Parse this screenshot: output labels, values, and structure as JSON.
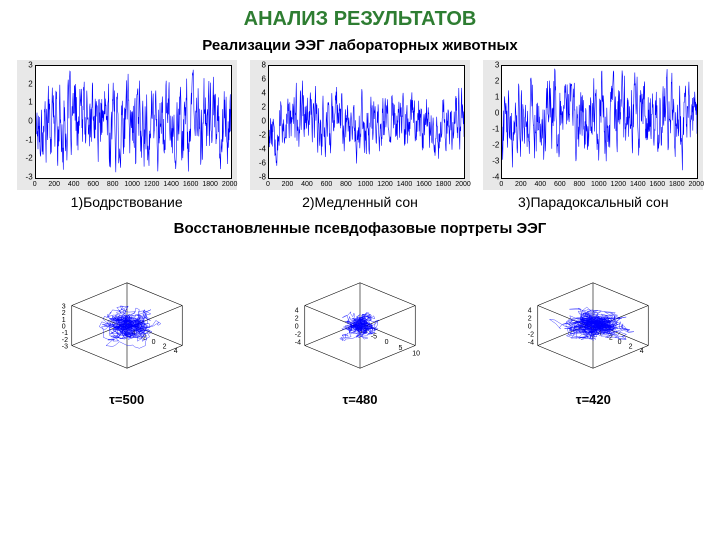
{
  "title": "АНАЛИЗ РЕЗУЛЬТАТОВ",
  "subtitle1": "Реализации ЭЭГ  лабораторных животных",
  "subtitle2": "Восстановленные псевдофазовые портреты ЭЭГ",
  "title_color": "#2e7d32",
  "plot_bg": "#e8e8e8",
  "axes_bg": "#ffffff",
  "line_color": "#0000ff",
  "ts": [
    {
      "caption": "1)Бодрствование",
      "ylim": [
        -3,
        3
      ],
      "yticks": [
        -3,
        -2,
        -1,
        0,
        1,
        2,
        3
      ],
      "xlim": [
        0,
        2000
      ],
      "xticks": [
        0,
        200,
        400,
        600,
        800,
        1000,
        1200,
        1400,
        1600,
        1800,
        2000
      ],
      "amp": 1.6,
      "noise": 0.6,
      "seed": 17
    },
    {
      "caption": "2)Медленный сон",
      "ylim": [
        -8,
        8
      ],
      "yticks": [
        -8,
        -6,
        -4,
        -2,
        0,
        2,
        4,
        6,
        8
      ],
      "xlim": [
        0,
        2000
      ],
      "xticks": [
        0,
        200,
        400,
        600,
        800,
        1000,
        1200,
        1400,
        1600,
        1800,
        2000
      ],
      "amp": 3.2,
      "noise": 1.2,
      "seed": 53
    },
    {
      "caption": "3)Парадоксальный сон",
      "ylim": [
        -4,
        3
      ],
      "yticks": [
        -4,
        -3,
        -2,
        -1,
        0,
        1,
        2,
        3
      ],
      "xlim": [
        0,
        2000
      ],
      "xticks": [
        0,
        200,
        400,
        600,
        800,
        1000,
        1200,
        1400,
        1600,
        1800,
        2000
      ],
      "amp": 1.8,
      "noise": 0.7,
      "seed": 91
    }
  ],
  "phase": [
    {
      "tau": "τ=500",
      "axrange": [
        -5,
        5
      ],
      "zrange": [
        -3,
        3
      ],
      "zticks": [
        -3,
        -2,
        -1,
        0,
        1,
        2,
        3
      ],
      "xticks": [
        -4,
        -2,
        0,
        2,
        4
      ],
      "spread": 1.8,
      "density": 900,
      "seed": 5
    },
    {
      "tau": "τ=480",
      "axrange": [
        -10,
        10
      ],
      "zrange": [
        -5,
        5
      ],
      "zticks": [
        -4,
        -2,
        0,
        2,
        4
      ],
      "xticks": [
        -10,
        -5,
        0,
        5,
        10
      ],
      "spread": 2.5,
      "density": 700,
      "seed": 23
    },
    {
      "tau": "τ=420",
      "axrange": [
        -5,
        5
      ],
      "zrange": [
        -5,
        5
      ],
      "zticks": [
        -4,
        -2,
        0,
        2,
        4
      ],
      "xticks": [
        -4,
        -2,
        0,
        2,
        4
      ],
      "spread": 2.2,
      "density": 1100,
      "seed": 41
    }
  ]
}
